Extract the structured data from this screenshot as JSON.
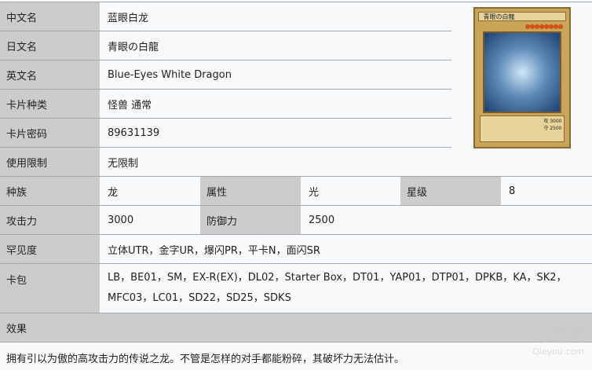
{
  "rows": [
    {
      "label": "中文名",
      "value": "蓝眼白龙"
    },
    {
      "label": "日文名",
      "value": "青眼の白龍"
    },
    {
      "label": "英文名",
      "value": "Blue-Eyes White Dragon"
    },
    {
      "label": "卡片种类",
      "value": "怪兽 通常"
    },
    {
      "label": "卡片密码",
      "value": "89631139"
    },
    {
      "label": "使用限制",
      "value": "无限制"
    }
  ],
  "race": {
    "label": "种族",
    "value": "龙"
  },
  "attribute": {
    "label": "属性",
    "value": "光"
  },
  "level": {
    "label": "星级",
    "value": "8"
  },
  "atk": {
    "label": "攻击力",
    "value": "3000"
  },
  "def": {
    "label": "防御力",
    "value": "2500"
  },
  "rarity": {
    "label": "罕见度",
    "value": "立体UTR，金字UR，爆闪PR，平卡N，面闪SR"
  },
  "packs": {
    "label": "卡包",
    "line1": "LB，BE01，SM，EX-R(EX)，DL02，Starter Box，DT01，YAP01，DTP01，DPKB，KA，SK2，",
    "line2": "MFC03，LC01，SD22，SD25，SDKS"
  },
  "effect": {
    "label": "效果",
    "text": "拥有引以为傲的高攻击力的传说之龙。不管是怎样的对手都能粉碎，其破坏力无法估计。"
  },
  "card_image": {
    "title": "青眼の白龍",
    "stars": "●●●●●●●●",
    "atk": "攻 3000",
    "def": "守 2500"
  },
  "watermark": {
    "logo": "切游网",
    "site": "Qleyou.com"
  }
}
